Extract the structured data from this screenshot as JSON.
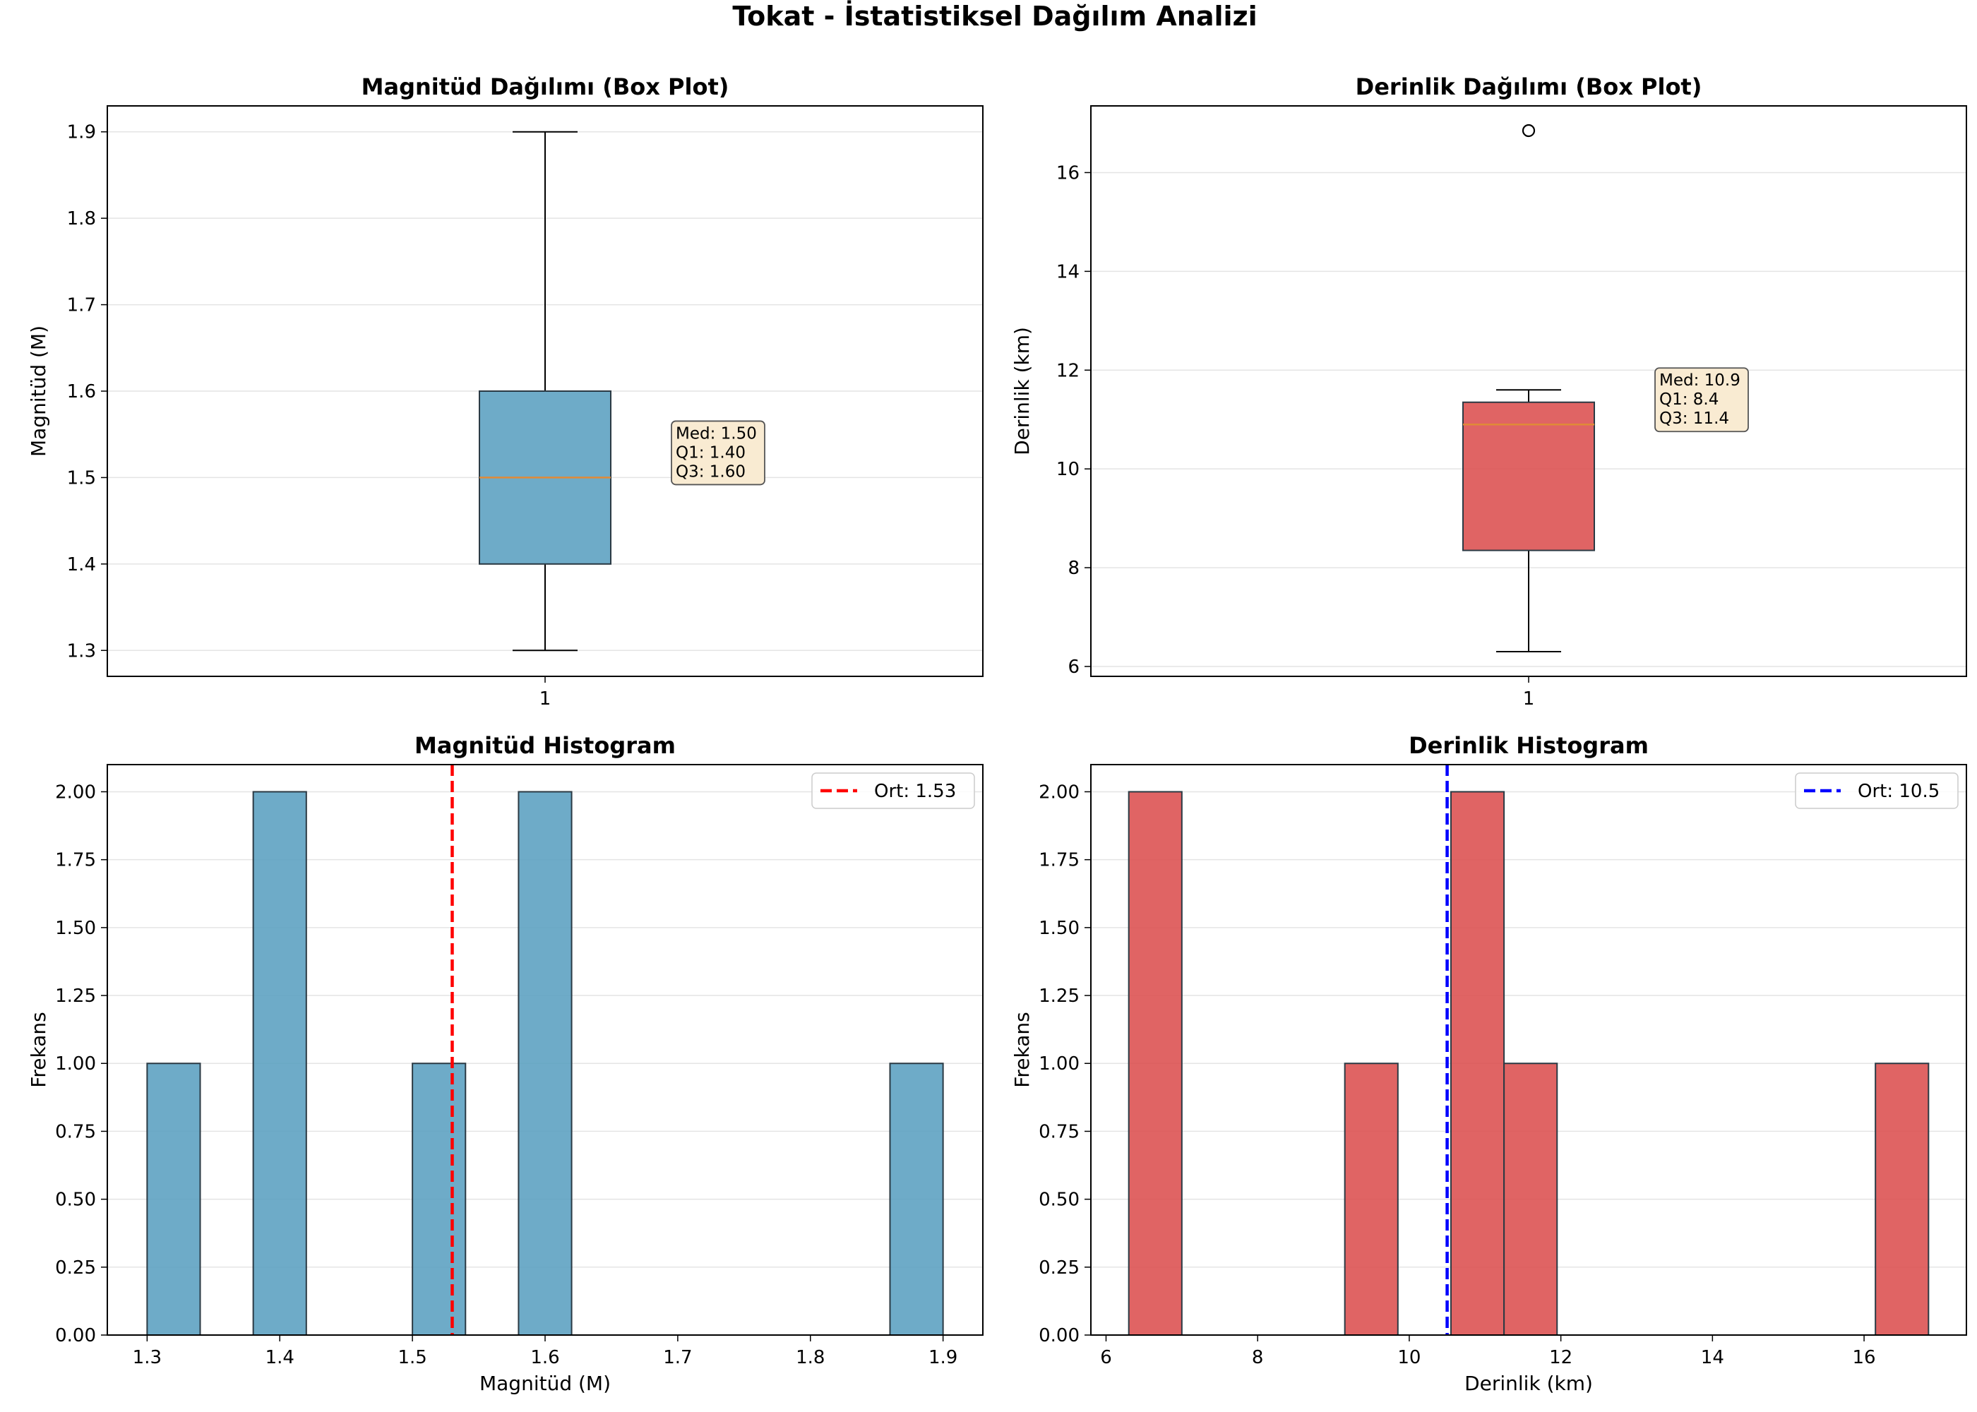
{
  "figure_title": "Tokat - İstatistiksel Dağılım Analizi",
  "colors": {
    "magnitude": "#5a9fc0",
    "depth": "#dc4e4e",
    "median": "#e08a37",
    "mag_mean": "#ff0000",
    "depth_mean": "#0000ff",
    "annotation_bg": "#f9ebd2",
    "grid": "#e4e4e4"
  },
  "chart_data": [
    {
      "type": "box",
      "title": "Magnitüd Dağılımı (Box Plot)",
      "xlabel": "",
      "ylabel": "Magnitüd (M)",
      "x_ticks": [
        "1"
      ],
      "y_ticks": [
        "1.3",
        "1.4",
        "1.5",
        "1.6",
        "1.7",
        "1.8",
        "1.9"
      ],
      "ylim": [
        1.27,
        1.93
      ],
      "grid": "y",
      "box": {
        "whisker_low": 1.3,
        "q1": 1.4,
        "median": 1.5,
        "q3": 1.6,
        "whisker_high": 1.9,
        "outliers": []
      },
      "annotation": [
        "Med: 1.50",
        "Q1: 1.40",
        "Q3: 1.60"
      ]
    },
    {
      "type": "box",
      "title": "Derinlik Dağılımı (Box Plot)",
      "xlabel": "",
      "ylabel": "Derinlik (km)",
      "x_ticks": [
        "1"
      ],
      "y_ticks": [
        "6",
        "8",
        "10",
        "12",
        "14",
        "16"
      ],
      "ylim": [
        5.8,
        17.35
      ],
      "grid": "y",
      "box": {
        "whisker_low": 6.3,
        "q1": 8.35,
        "median": 10.9,
        "q3": 11.35,
        "whisker_high": 11.6,
        "outliers": [
          16.85
        ]
      },
      "annotation": [
        "Med: 10.9",
        "Q1: 8.4",
        "Q3: 11.4"
      ]
    },
    {
      "type": "bar",
      "title": "Magnitüd Histogram",
      "xlabel": "Magnitüd (M)",
      "ylabel": "Frekans",
      "x_ticks": [
        "1.3",
        "1.4",
        "1.5",
        "1.6",
        "1.7",
        "1.8",
        "1.9"
      ],
      "y_ticks": [
        "0.00",
        "0.25",
        "0.50",
        "0.75",
        "1.00",
        "1.25",
        "1.50",
        "1.75",
        "2.00"
      ],
      "xlim": [
        1.27,
        1.93
      ],
      "ylim": [
        0,
        2.1
      ],
      "grid": "y",
      "bins": [
        {
          "x0": 1.3,
          "x1": 1.34,
          "count": 1
        },
        {
          "x0": 1.38,
          "x1": 1.42,
          "count": 2
        },
        {
          "x0": 1.5,
          "x1": 1.54,
          "count": 1
        },
        {
          "x0": 1.58,
          "x1": 1.62,
          "count": 2
        },
        {
          "x0": 1.86,
          "x1": 1.9,
          "count": 1
        }
      ],
      "mean": 1.53,
      "legend": {
        "label": "Ort: 1.53",
        "position": "top-right"
      }
    },
    {
      "type": "bar",
      "title": "Derinlik Histogram",
      "xlabel": "Derinlik (km)",
      "ylabel": "Frekans",
      "x_ticks": [
        "6",
        "8",
        "10",
        "12",
        "14",
        "16"
      ],
      "y_ticks": [
        "0.00",
        "0.25",
        "0.50",
        "0.75",
        "1.00",
        "1.25",
        "1.50",
        "1.75",
        "2.00"
      ],
      "xlim": [
        5.8,
        17.35
      ],
      "ylim": [
        0,
        2.1
      ],
      "grid": "y",
      "bins": [
        {
          "x0": 6.3,
          "x1": 7.0,
          "count": 2
        },
        {
          "x0": 9.15,
          "x1": 9.85,
          "count": 1
        },
        {
          "x0": 10.55,
          "x1": 11.25,
          "count": 2
        },
        {
          "x0": 11.25,
          "x1": 11.95,
          "count": 1
        },
        {
          "x0": 16.15,
          "x1": 16.85,
          "count": 1
        }
      ],
      "mean": 10.5,
      "legend": {
        "label": "Ort: 10.5",
        "position": "top-right"
      }
    }
  ]
}
